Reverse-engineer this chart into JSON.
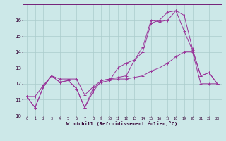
{
  "title": "",
  "xlabel": "Windchill (Refroidissement éolien,°C)",
  "bg_color": "#cce8e8",
  "grid_color": "#aacccc",
  "line_color": "#993399",
  "xlim": [
    -0.5,
    23.5
  ],
  "ylim": [
    10,
    17
  ],
  "yticks": [
    10,
    11,
    12,
    13,
    14,
    15,
    16
  ],
  "xticks": [
    0,
    1,
    2,
    3,
    4,
    5,
    6,
    7,
    8,
    9,
    10,
    11,
    12,
    13,
    14,
    15,
    16,
    17,
    18,
    19,
    20,
    21,
    22,
    23
  ],
  "series": [
    [
      11.2,
      10.5,
      11.8,
      12.5,
      12.1,
      12.2,
      11.7,
      10.5,
      11.5,
      12.2,
      12.3,
      12.4,
      12.5,
      13.5,
      14.3,
      16.0,
      15.9,
      16.0,
      16.6,
      16.3,
      14.2,
      12.5,
      12.7,
      12.0
    ],
    [
      11.2,
      10.5,
      11.8,
      12.5,
      12.1,
      12.2,
      11.7,
      10.5,
      11.7,
      12.1,
      12.2,
      13.0,
      13.3,
      13.5,
      14.0,
      15.8,
      16.0,
      16.5,
      16.6,
      15.3,
      14.1,
      12.5,
      12.7,
      12.0
    ],
    [
      11.2,
      11.2,
      11.9,
      12.5,
      12.3,
      12.3,
      12.3,
      11.3,
      11.8,
      12.2,
      12.3,
      12.3,
      12.3,
      12.4,
      12.5,
      12.8,
      13.0,
      13.3,
      13.7,
      14.0,
      14.0,
      12.0,
      12.0,
      12.0
    ]
  ]
}
